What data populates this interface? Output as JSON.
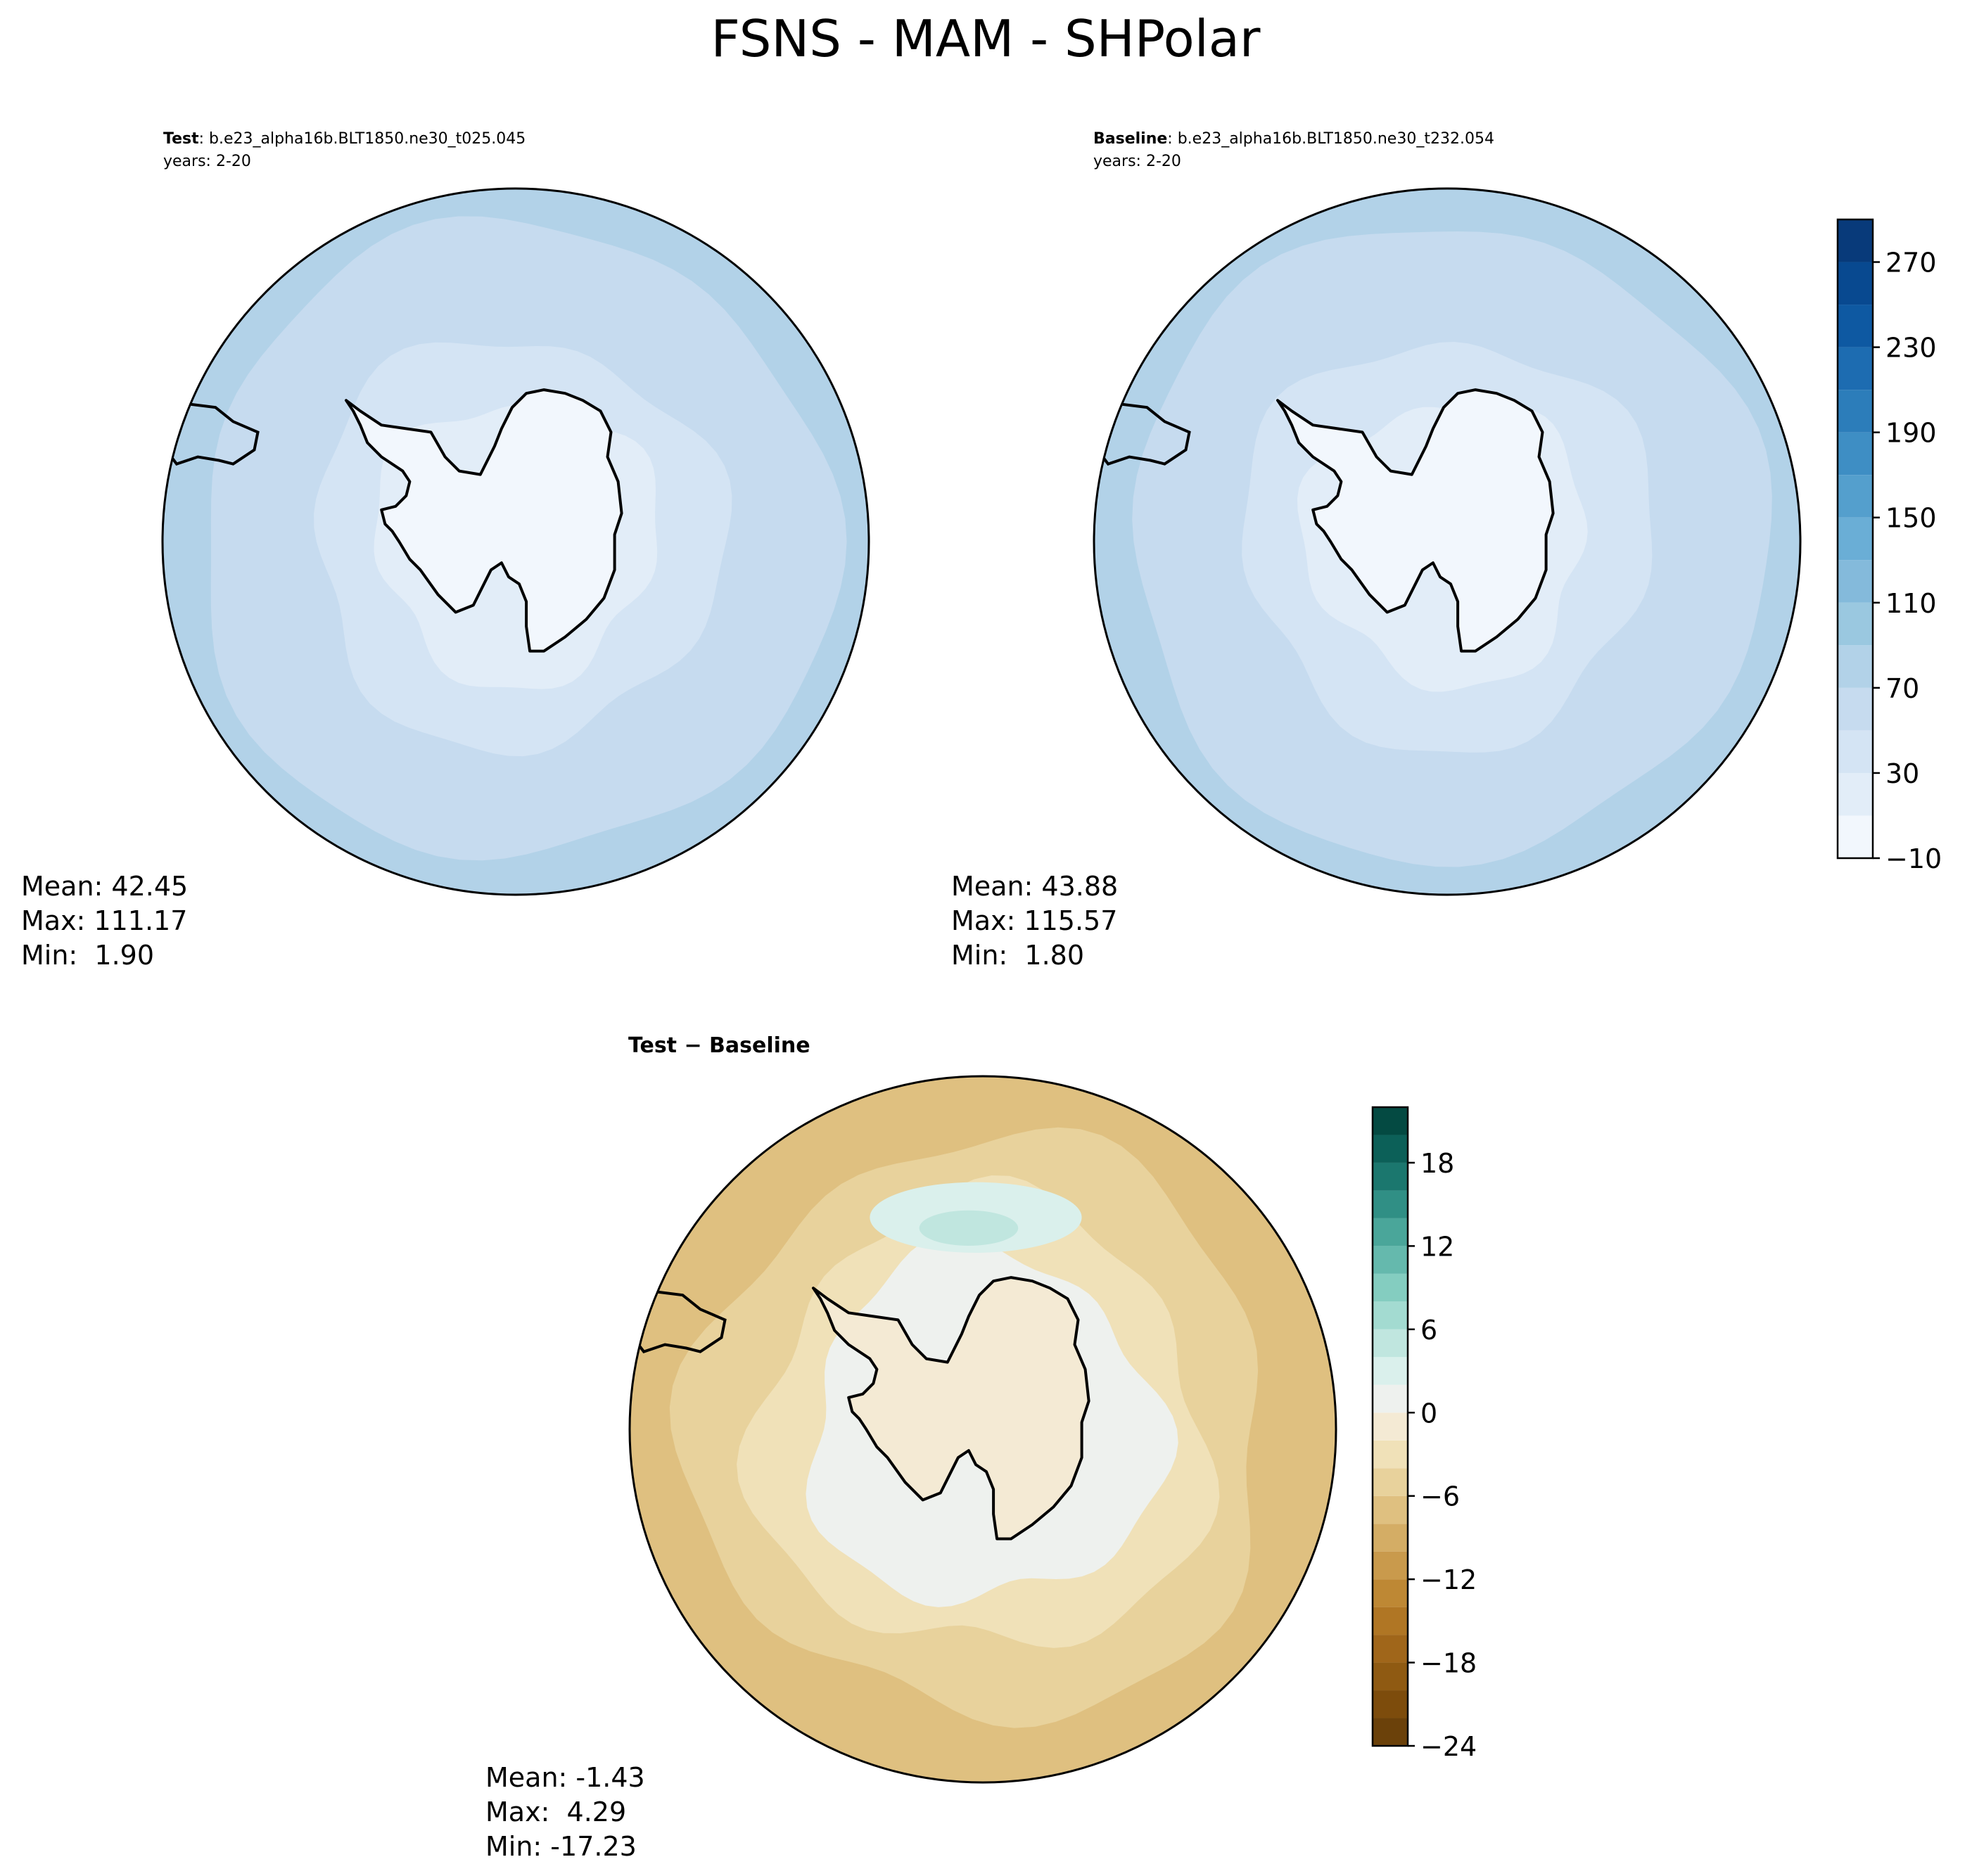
{
  "figure": {
    "title": "FSNS - MAM - SHPolar"
  },
  "chart_data": [
    {
      "type": "contour-map",
      "projection": "south-polar-stereographic",
      "variable": "FSNS",
      "title_bold": "Test",
      "title_rest": ": b.e23_alpha16b.BLT1850.ne30_t025.045",
      "subtitle": "years: 2-20",
      "stats": {
        "mean": "Mean: 42.45",
        "max": "Max: 111.17",
        "min": "Min:  1.90"
      },
      "field_levels": {
        "pole": 0,
        "coast": 12,
        "mid": 35,
        "outer": 60,
        "rim": 80
      },
      "colorbar_ref": "abs"
    },
    {
      "type": "contour-map",
      "projection": "south-polar-stereographic",
      "variable": "FSNS",
      "title_bold": "Baseline",
      "title_rest": ": b.e23_alpha16b.BLT1850.ne30_t232.054",
      "subtitle": "years: 2-20",
      "stats": {
        "mean": "Mean: 43.88",
        "max": "Max: 115.57",
        "min": "Min:  1.80"
      },
      "field_levels": {
        "pole": 0,
        "coast": 12,
        "mid": 35,
        "outer": 62,
        "rim": 85
      },
      "colorbar_ref": "abs"
    },
    {
      "type": "contour-map",
      "projection": "south-polar-stereographic",
      "variable": "FSNS difference",
      "title_bold": "Test",
      "title_rest": " − Baseline",
      "subtitle": "",
      "stats": {
        "mean": "Mean: -1.43",
        "max": "Max:  4.29",
        "min": "Min: -17.23"
      },
      "colorbar_ref": "diff"
    }
  ],
  "colorbars": {
    "abs": {
      "colormap": "Blues",
      "range": [
        -10,
        290
      ],
      "levels": [
        -10,
        10,
        30,
        50,
        70,
        90,
        110,
        130,
        150,
        170,
        190,
        210,
        230,
        250,
        270,
        290
      ],
      "colors": [
        "#f2f7fd",
        "#e2edf8",
        "#d4e4f4",
        "#c6dbef",
        "#b2d2e8",
        "#9ac8e0",
        "#84badb",
        "#6aaed6",
        "#549fcd",
        "#3e8ec4",
        "#2c7dba",
        "#1d6cb1",
        "#0e59a2",
        "#084990",
        "#083a7a"
      ],
      "tick_values": [
        -10,
        30,
        70,
        110,
        150,
        190,
        230,
        270
      ],
      "tick_labels": [
        "−10",
        "30",
        "70",
        "110",
        "150",
        "190",
        "230",
        "270"
      ]
    },
    "diff": {
      "colormap": "BrBG",
      "range": [
        -24,
        22
      ],
      "levels": [
        -24,
        -22,
        -20,
        -18,
        -16,
        -14,
        -12,
        -10,
        -8,
        -6,
        -4,
        -2,
        0,
        2,
        4,
        6,
        8,
        10,
        12,
        14,
        16,
        18,
        20,
        22
      ],
      "colors": [
        "#6b410a",
        "#7d4c0c",
        "#8f5a12",
        "#a0661a",
        "#b07624",
        "#be8834",
        "#c99a4c",
        "#d4ad65",
        "#dfc080",
        "#e8d29c",
        "#f0e1b8",
        "#f4ead4",
        "#eef1ee",
        "#daf0ec",
        "#c0e6df",
        "#a3dbd1",
        "#84cdc0",
        "#65b9ad",
        "#4aa69a",
        "#308f85",
        "#1b776e",
        "#0c6058",
        "#044a42"
      ],
      "tick_values": [
        -24,
        -18,
        -12,
        -6,
        0,
        6,
        12,
        18
      ],
      "tick_labels": [
        "−24",
        "−18",
        "−12",
        "−6",
        "0",
        "6",
        "12",
        "18"
      ]
    }
  }
}
